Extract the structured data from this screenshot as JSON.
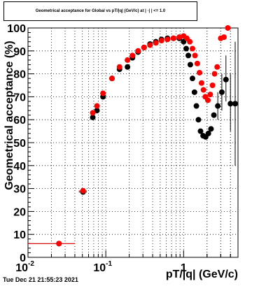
{
  "chart_data": {
    "type": "scatter",
    "title": "Geometrical acceptance for Global vs pT/|q| (GeV/c) at | ·| | <= 1.0",
    "xlabel": "pT/|q| (GeV/c)",
    "ylabel": "Geometrical acceptance (%)",
    "xscale": "log",
    "xlim": [
      0.01,
      5
    ],
    "ylim": [
      0,
      100
    ],
    "grid": true,
    "y_ticks": [
      0,
      10,
      20,
      30,
      40,
      50,
      60,
      70,
      80,
      90,
      100
    ],
    "x_ticks": [
      {
        "value": 0.01,
        "label": "10",
        "exp": "-2"
      },
      {
        "value": 0.1,
        "label": "10",
        "exp": "-1"
      },
      {
        "value": 1,
        "label": "1",
        "exp": ""
      }
    ],
    "series": [
      {
        "color": "#000000",
        "points": [
          {
            "x": 0.025,
            "y": 6,
            "xerr": [
              0.01,
              0.04
            ]
          },
          {
            "x": 0.051,
            "y": 28.5,
            "xerr": [
              0.045,
              0.057
            ]
          },
          {
            "x": 0.068,
            "y": 61
          },
          {
            "x": 0.077,
            "y": 64
          },
          {
            "x": 0.092,
            "y": 70
          },
          {
            "x": 0.12,
            "y": 78
          },
          {
            "x": 0.15,
            "y": 82
          },
          {
            "x": 0.19,
            "y": 83
          },
          {
            "x": 0.22,
            "y": 87
          },
          {
            "x": 0.26,
            "y": 89.5
          },
          {
            "x": 0.31,
            "y": 91.5
          },
          {
            "x": 0.37,
            "y": 93
          },
          {
            "x": 0.44,
            "y": 94
          },
          {
            "x": 0.52,
            "y": 95
          },
          {
            "x": 0.62,
            "y": 95.5
          },
          {
            "x": 0.74,
            "y": 95.5
          },
          {
            "x": 0.88,
            "y": 95.5
          },
          {
            "x": 1.0,
            "y": 94
          },
          {
            "x": 1.08,
            "y": 91
          },
          {
            "x": 1.15,
            "y": 88
          },
          {
            "x": 1.22,
            "y": 84
          },
          {
            "x": 1.3,
            "y": 78
          },
          {
            "x": 1.38,
            "y": 72
          },
          {
            "x": 1.46,
            "y": 66
          },
          {
            "x": 1.55,
            "y": 60
          },
          {
            "x": 1.65,
            "y": 55
          },
          {
            "x": 1.78,
            "y": 53
          },
          {
            "x": 1.92,
            "y": 52.5
          },
          {
            "x": 2.08,
            "y": 54
          },
          {
            "x": 2.25,
            "y": 56
          },
          {
            "x": 2.45,
            "y": 62
          },
          {
            "x": 2.75,
            "y": 66,
            "yerr": [
              60,
              72
            ]
          },
          {
            "x": 3.1,
            "y": 72,
            "yerr": [
              64,
              80
            ]
          },
          {
            "x": 3.5,
            "y": 77.5,
            "yerr": [
              68,
              88
            ]
          },
          {
            "x": 4.0,
            "y": 67,
            "yerr": [
              55,
              80
            ]
          },
          {
            "x": 4.6,
            "y": 67,
            "yerr": [
              40,
              94
            ]
          }
        ]
      },
      {
        "color": "#ff0000",
        "points": [
          {
            "x": 0.025,
            "y": 6,
            "xerr": [
              0.01,
              0.04
            ]
          },
          {
            "x": 0.051,
            "y": 29,
            "xerr": [
              0.045,
              0.057
            ]
          },
          {
            "x": 0.068,
            "y": 63
          },
          {
            "x": 0.077,
            "y": 66
          },
          {
            "x": 0.092,
            "y": 71.5
          },
          {
            "x": 0.12,
            "y": 78
          },
          {
            "x": 0.15,
            "y": 83
          },
          {
            "x": 0.19,
            "y": 86
          },
          {
            "x": 0.22,
            "y": 88
          },
          {
            "x": 0.26,
            "y": 90
          },
          {
            "x": 0.31,
            "y": 91.5
          },
          {
            "x": 0.37,
            "y": 92.5
          },
          {
            "x": 0.44,
            "y": 93.5
          },
          {
            "x": 0.52,
            "y": 94.5
          },
          {
            "x": 0.62,
            "y": 95
          },
          {
            "x": 0.74,
            "y": 95.5
          },
          {
            "x": 0.88,
            "y": 96
          },
          {
            "x": 1.0,
            "y": 96.5
          },
          {
            "x": 1.1,
            "y": 95.5
          },
          {
            "x": 1.2,
            "y": 94
          },
          {
            "x": 1.3,
            "y": 91
          },
          {
            "x": 1.4,
            "y": 88
          },
          {
            "x": 1.5,
            "y": 84.5
          },
          {
            "x": 1.6,
            "y": 80.5
          },
          {
            "x": 1.7,
            "y": 76
          },
          {
            "x": 1.8,
            "y": 73
          },
          {
            "x": 1.9,
            "y": 70
          },
          {
            "x": 2.05,
            "y": 68.5
          },
          {
            "x": 2.2,
            "y": 71
          },
          {
            "x": 2.35,
            "y": 75
          },
          {
            "x": 2.5,
            "y": 80
          },
          {
            "x": 2.7,
            "y": 83
          },
          {
            "x": 3.0,
            "y": 95.5
          },
          {
            "x": 3.3,
            "y": 96
          },
          {
            "x": 3.7,
            "y": 100
          }
        ]
      }
    ]
  },
  "timestamp": "Tue Dec 21 21:55:23 2021"
}
